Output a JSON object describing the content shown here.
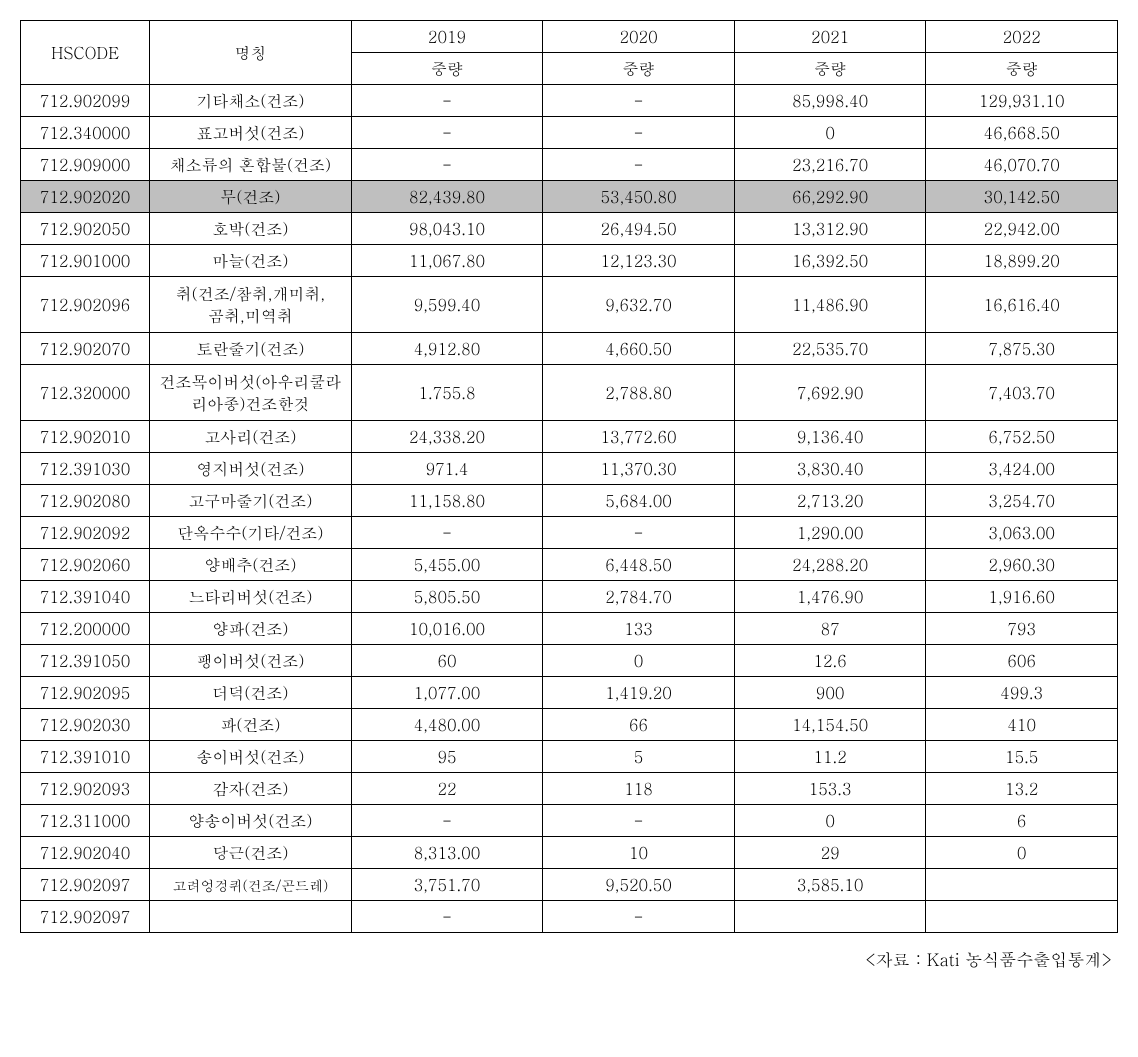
{
  "table": {
    "header": {
      "hscode": "HSCODE",
      "name": "명칭",
      "years": [
        "2019",
        "2020",
        "2021",
        "2022"
      ],
      "weight": "중량"
    },
    "rows": [
      {
        "hscode": "712.902099",
        "name": "기타채소(건조)",
        "y2019": "-",
        "y2020": "-",
        "y2021": "85,998.40",
        "y2022": "129,931.10",
        "highlight": false
      },
      {
        "hscode": "712.340000",
        "name": "표고버섯(건조)",
        "y2019": "-",
        "y2020": "-",
        "y2021": "0",
        "y2022": "46,668.50",
        "highlight": false
      },
      {
        "hscode": "712.909000",
        "name": "채소류의 혼합물(건조)",
        "y2019": "-",
        "y2020": "-",
        "y2021": "23,216.70",
        "y2022": "46,070.70",
        "highlight": false
      },
      {
        "hscode": "712.902020",
        "name": "무(건조)",
        "y2019": "82,439.80",
        "y2020": "53,450.80",
        "y2021": "66,292.90",
        "y2022": "30,142.50",
        "highlight": true
      },
      {
        "hscode": "712.902050",
        "name": "호박(건조)",
        "y2019": "98,043.10",
        "y2020": "26,494.50",
        "y2021": "13,312.90",
        "y2022": "22,942.00",
        "highlight": false
      },
      {
        "hscode": "712.901000",
        "name": "마늘(건조)",
        "y2019": "11,067.80",
        "y2020": "12,123.30",
        "y2021": "16,392.50",
        "y2022": "18,899.20",
        "highlight": false
      },
      {
        "hscode": "712.902096",
        "name": "취(건조/참취,개미취,곰취,미역취",
        "y2019": "9,599.40",
        "y2020": "9,632.70",
        "y2021": "11,486.90",
        "y2022": "16,616.40",
        "highlight": false,
        "multiline": true,
        "nameHtml": "취(건조/참취,개미취,<br>곰취,미역취"
      },
      {
        "hscode": "712.902070",
        "name": "토란줄기(건조)",
        "y2019": "4,912.80",
        "y2020": "4,660.50",
        "y2021": "22,535.70",
        "y2022": "7,875.30",
        "highlight": false
      },
      {
        "hscode": "712.320000",
        "name": "건조목이버섯(아우리쿨라리아종)건조한것",
        "y2019": "1.755.8",
        "y2020": "2,788.80",
        "y2021": "7,692.90",
        "y2022": "7,403.70",
        "highlight": false,
        "multiline": true,
        "nameHtml": "건조목이버섯(아우리쿨라<br>리아종)건조한것"
      },
      {
        "hscode": "712.902010",
        "name": "고사리(건조)",
        "y2019": "24,338.20",
        "y2020": "13,772.60",
        "y2021": "9,136.40",
        "y2022": "6,752.50",
        "highlight": false
      },
      {
        "hscode": "712.391030",
        "name": "영지버섯(건조)",
        "y2019": "971.4",
        "y2020": "11,370.30",
        "y2021": "3,830.40",
        "y2022": "3,424.00",
        "highlight": false
      },
      {
        "hscode": "712.902080",
        "name": "고구마줄기(건조)",
        "y2019": "11,158.80",
        "y2020": "5,684.00",
        "y2021": "2,713.20",
        "y2022": "3,254.70",
        "highlight": false
      },
      {
        "hscode": "712.902092",
        "name": "단옥수수(기타/건조)",
        "y2019": "-",
        "y2020": "-",
        "y2021": "1,290.00",
        "y2022": "3,063.00",
        "highlight": false
      },
      {
        "hscode": "712.902060",
        "name": "양배추(건조)",
        "y2019": "5,455.00",
        "y2020": "6,448.50",
        "y2021": "24,288.20",
        "y2022": "2,960.30",
        "highlight": false
      },
      {
        "hscode": "712.391040",
        "name": "느타리버섯(건조)",
        "y2019": "5,805.50",
        "y2020": "2,784.70",
        "y2021": "1,476.90",
        "y2022": "1,916.60",
        "highlight": false
      },
      {
        "hscode": "712.200000",
        "name": "양파(건조)",
        "y2019": "10,016.00",
        "y2020": "133",
        "y2021": "87",
        "y2022": "793",
        "highlight": false
      },
      {
        "hscode": "712.391050",
        "name": "팽이버섯(건조)",
        "y2019": "60",
        "y2020": "0",
        "y2021": "12.6",
        "y2022": "606",
        "highlight": false
      },
      {
        "hscode": "712.902095",
        "name": "더덕(건조)",
        "y2019": "1,077.00",
        "y2020": "1,419.20",
        "y2021": "900",
        "y2022": "499.3",
        "highlight": false
      },
      {
        "hscode": "712.902030",
        "name": "파(건조)",
        "y2019": "4,480.00",
        "y2020": "66",
        "y2021": "14,154.50",
        "y2022": "410",
        "highlight": false
      },
      {
        "hscode": "712.391010",
        "name": "송이버섯(건조)",
        "y2019": "95",
        "y2020": "5",
        "y2021": "11.2",
        "y2022": "15.5",
        "highlight": false
      },
      {
        "hscode": "712.902093",
        "name": "감자(건조)",
        "y2019": "22",
        "y2020": "118",
        "y2021": "153.3",
        "y2022": "13.2",
        "highlight": false
      },
      {
        "hscode": "712.311000",
        "name": "양송이버섯(건조)",
        "y2019": "-",
        "y2020": "-",
        "y2021": "0",
        "y2022": "6",
        "highlight": false
      },
      {
        "hscode": "712.902040",
        "name": "당근(건조)",
        "y2019": "8,313.00",
        "y2020": "10",
        "y2021": "29",
        "y2022": "0",
        "highlight": false
      },
      {
        "hscode": "712.902097",
        "name": "고려엉겅퀴(건조/곤드레)",
        "y2019": "3,751.70",
        "y2020": "9,520.50",
        "y2021": "3,585.10",
        "y2022": "",
        "highlight": false,
        "smallName": true
      },
      {
        "hscode": "712.902097",
        "name": "",
        "y2019": "-",
        "y2020": "-",
        "y2021": "",
        "y2022": "",
        "highlight": false
      }
    ],
    "source": "<자료 : Kati 농식품수출입통계>"
  }
}
